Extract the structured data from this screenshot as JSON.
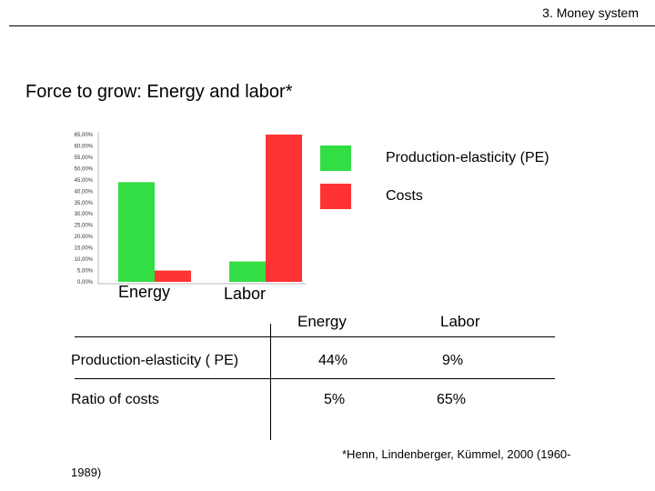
{
  "header": {
    "section": "3. Money system"
  },
  "title": "Force to grow: Energy and labor*",
  "chart_data": {
    "type": "bar",
    "categories": [
      "Energy",
      "Labor"
    ],
    "series": [
      {
        "name": "Production-elasticity (PE)",
        "color": "#33dd44",
        "values": [
          44,
          9
        ]
      },
      {
        "name": "Costs",
        "color": "#ff3333",
        "values": [
          5,
          65
        ]
      }
    ],
    "ylim": [
      0,
      65
    ],
    "y_ticks": [
      "0,00%",
      "5,00%",
      "10,00%",
      "15,00%",
      "20,00%",
      "25,00%",
      "30,00%",
      "35,00%",
      "40,00%",
      "45,00%",
      "50,00%",
      "55,00%",
      "60,00%",
      "65,00%"
    ],
    "legend_position": "right",
    "grid": false
  },
  "table": {
    "headers": [
      "Energy",
      "Labor"
    ],
    "rows": [
      {
        "label": "Production-elasticity ( PE)",
        "values": [
          "44%",
          "9%"
        ]
      },
      {
        "label": "Ratio  of costs",
        "values": [
          "5%",
          "65%"
        ]
      }
    ]
  },
  "footnote": {
    "line1": "*Henn, Lindenberger, Kümmel, 2000 (1960-",
    "line2": "1989)"
  }
}
